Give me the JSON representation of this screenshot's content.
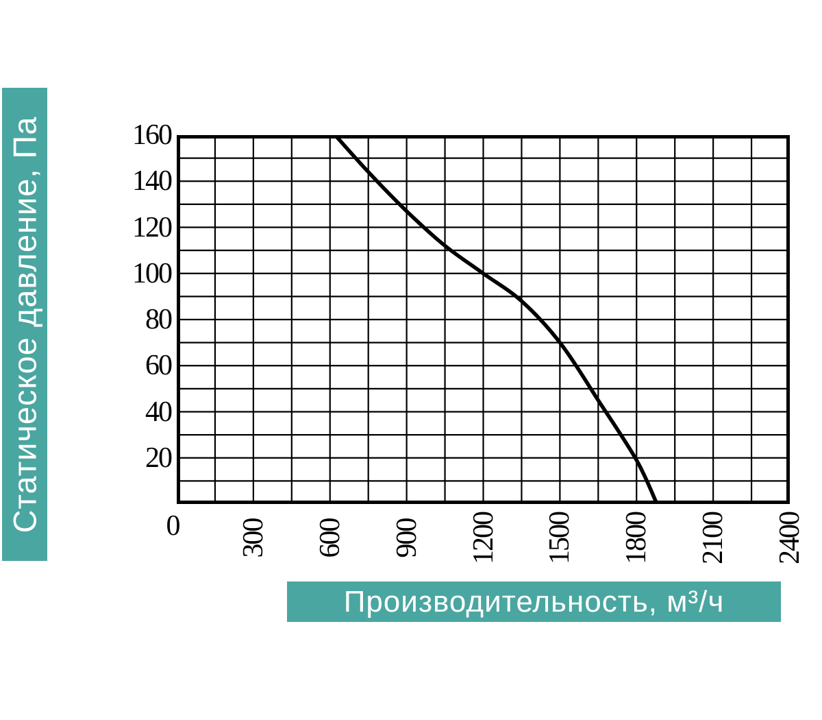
{
  "labels": {
    "y_axis": "Статическое давление, Па",
    "x_axis": "Производительность, м³/ч"
  },
  "colors": {
    "accent_teal": "#4aa6a0",
    "label_text": "#ffffff",
    "grid_line": "#000000",
    "curve_line": "#000000",
    "tick_text": "#000000"
  },
  "chart_data": {
    "type": "line",
    "title": "",
    "xlabel": "Производительность, м³/ч",
    "ylabel": "Статическое давление, Па",
    "xlim": [
      0,
      2400
    ],
    "ylim": [
      0,
      160
    ],
    "x_major_ticks": [
      0,
      300,
      600,
      900,
      1200,
      1500,
      1800,
      2100,
      2400
    ],
    "y_major_ticks": [
      0,
      20,
      40,
      60,
      80,
      100,
      120,
      140,
      160
    ],
    "x_minor_step": 150,
    "y_minor_step": 10,
    "grid": "on",
    "legend": "none",
    "series": [
      {
        "name": "fan-performance-curve",
        "points": [
          [
            620,
            160
          ],
          [
            750,
            144
          ],
          [
            900,
            127
          ],
          [
            1050,
            112
          ],
          [
            1200,
            100
          ],
          [
            1350,
            88
          ],
          [
            1500,
            70
          ],
          [
            1650,
            45
          ],
          [
            1800,
            19
          ],
          [
            1880,
            0
          ]
        ]
      }
    ]
  }
}
